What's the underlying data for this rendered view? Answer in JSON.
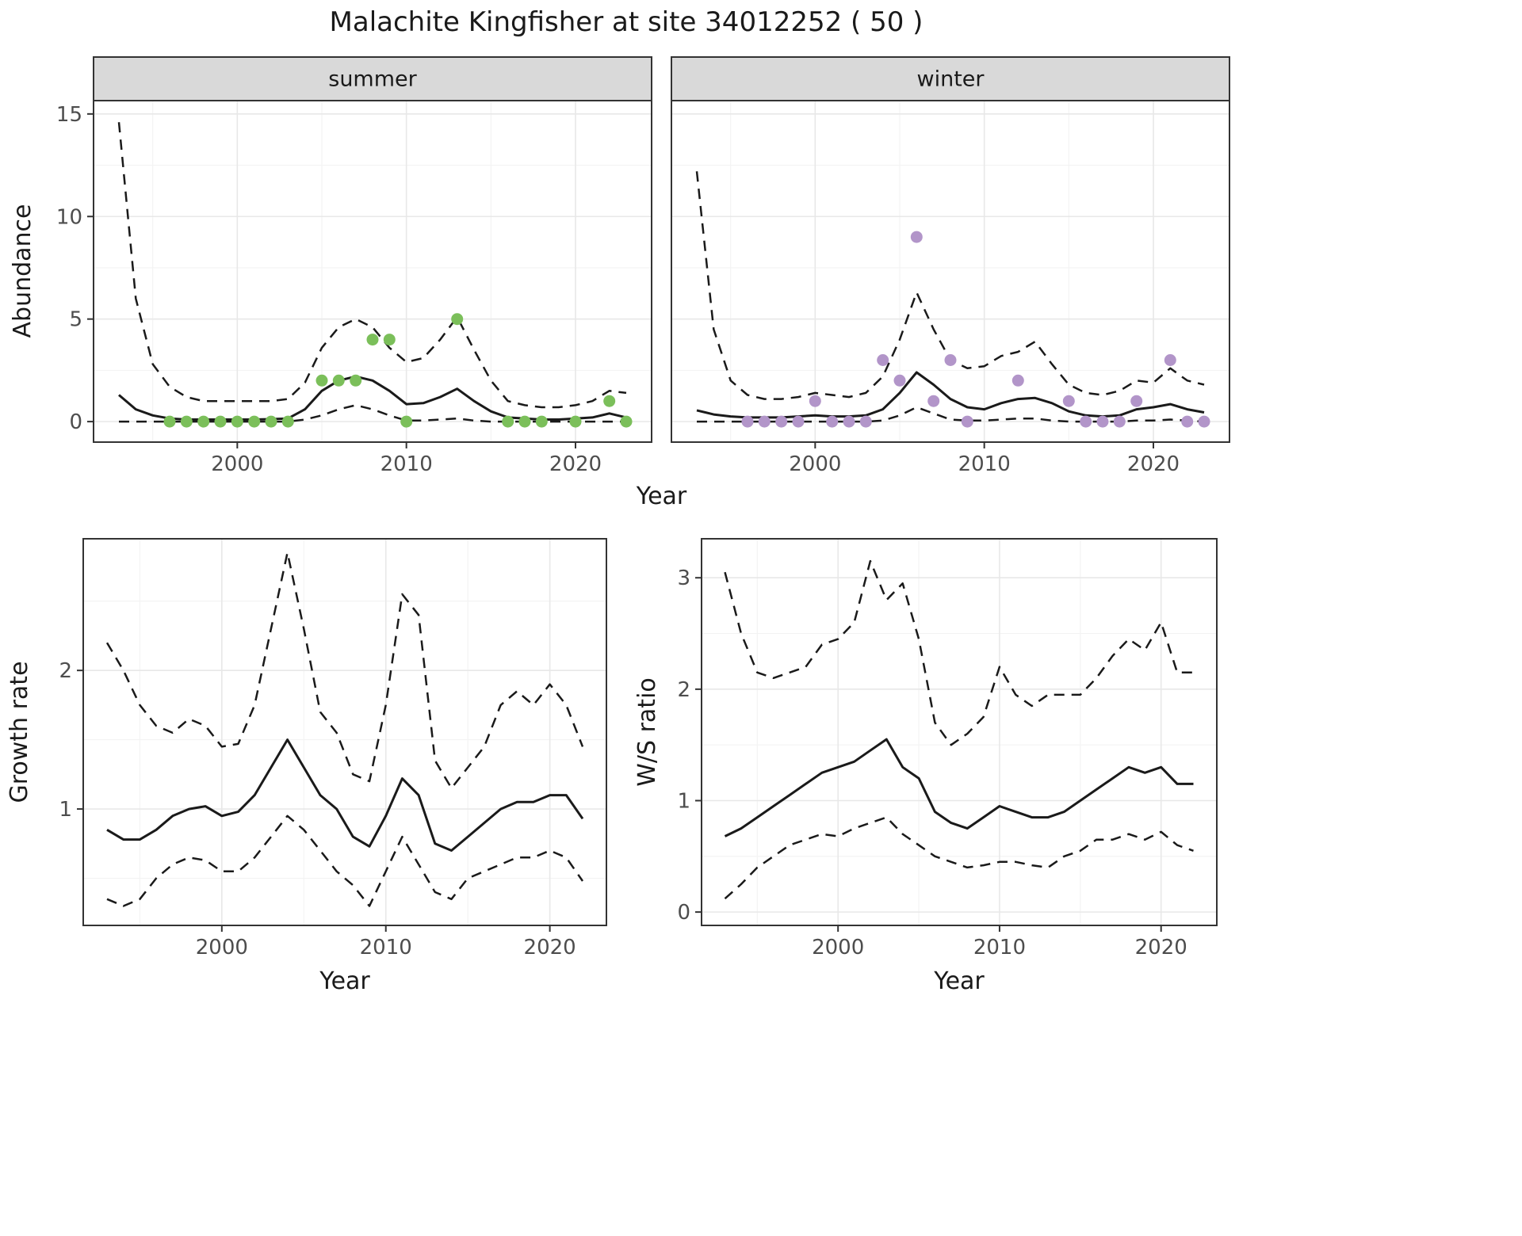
{
  "figure": {
    "title": "Malachite Kingfisher at site 34012252 ( 50 )"
  },
  "colors": {
    "line": "#1a1a1a",
    "panel_border": "#333333",
    "strip_fill": "#d9d9d9",
    "grid_major": "#e8e8e8",
    "grid_minor": "#f3f3f3",
    "summer_point": "#7bbf5a",
    "winter_point": "#b295c9"
  },
  "chart_data": [
    {
      "type": "line",
      "title": "Malachite Kingfisher at site 34012252 ( 50 )",
      "xlabel": "Year",
      "ylabel": "Abundance",
      "facets": [
        "summer",
        "winter"
      ],
      "legend": "none",
      "grid": true,
      "x": [
        1993,
        1994,
        1995,
        1996,
        1997,
        1998,
        1999,
        2000,
        2001,
        2002,
        2003,
        2004,
        2005,
        2006,
        2007,
        2008,
        2009,
        2010,
        2011,
        2012,
        2013,
        2014,
        2015,
        2016,
        2017,
        2018,
        2019,
        2020,
        2021,
        2022,
        2023
      ],
      "xticks": [
        2000,
        2010,
        2020
      ],
      "yticks": [
        0,
        5,
        10,
        15
      ],
      "xlim": [
        1991.5,
        2024.5
      ],
      "ylim": [
        -1.0,
        15.65
      ],
      "series": [
        {
          "facet": "summer",
          "point_color": "#7bbf5a",
          "fit": [
            1.3,
            0.6,
            0.3,
            0.15,
            0.1,
            0.1,
            0.1,
            0.1,
            0.1,
            0.12,
            0.15,
            0.6,
            1.5,
            2.0,
            2.2,
            2.0,
            1.5,
            0.85,
            0.9,
            1.2,
            1.6,
            1.0,
            0.5,
            0.2,
            0.15,
            0.1,
            0.1,
            0.15,
            0.2,
            0.4,
            0.2
          ],
          "ci_upper": [
            14.6,
            6.0,
            2.8,
            1.7,
            1.2,
            1.0,
            1.0,
            1.0,
            1.0,
            1.0,
            1.1,
            1.9,
            3.6,
            4.6,
            5.0,
            4.6,
            3.6,
            2.9,
            3.1,
            4.0,
            5.1,
            3.5,
            2.0,
            1.0,
            0.8,
            0.7,
            0.7,
            0.8,
            1.0,
            1.5,
            1.4
          ],
          "ci_lower": [
            0,
            0,
            0,
            0,
            0,
            0,
            0,
            0,
            0,
            0,
            0,
            0.1,
            0.3,
            0.6,
            0.8,
            0.6,
            0.3,
            0.05,
            0.05,
            0.1,
            0.15,
            0.05,
            0,
            0,
            0,
            0,
            0,
            0,
            0,
            0,
            0
          ],
          "obs_x": [
            1996,
            1997,
            1998,
            1999,
            2000,
            2001,
            2002,
            2003,
            2005,
            2006,
            2007,
            2008,
            2009,
            2010,
            2013,
            2016,
            2017,
            2018,
            2020,
            2022,
            2023
          ],
          "obs_y": [
            0,
            0,
            0,
            0,
            0,
            0,
            0,
            0,
            2,
            2,
            2,
            4,
            4,
            0,
            5,
            0,
            0,
            0,
            0,
            1,
            0
          ]
        },
        {
          "facet": "winter",
          "point_color": "#b295c9",
          "fit": [
            0.55,
            0.35,
            0.25,
            0.2,
            0.2,
            0.2,
            0.25,
            0.3,
            0.25,
            0.25,
            0.3,
            0.6,
            1.4,
            2.4,
            1.8,
            1.1,
            0.7,
            0.6,
            0.9,
            1.1,
            1.15,
            0.9,
            0.5,
            0.3,
            0.25,
            0.3,
            0.6,
            0.7,
            0.85,
            0.6,
            0.45
          ],
          "ci_upper": [
            12.2,
            4.5,
            2.0,
            1.3,
            1.1,
            1.1,
            1.2,
            1.4,
            1.3,
            1.2,
            1.4,
            2.2,
            4.0,
            6.3,
            4.5,
            3.0,
            2.6,
            2.7,
            3.2,
            3.4,
            3.9,
            2.8,
            1.8,
            1.4,
            1.3,
            1.5,
            2.0,
            1.9,
            2.6,
            2.0,
            1.8
          ],
          "ci_lower": [
            0,
            0,
            0,
            0,
            0,
            0,
            0,
            0,
            0,
            0,
            0,
            0.05,
            0.3,
            0.7,
            0.4,
            0.1,
            0.05,
            0.05,
            0.1,
            0.15,
            0.15,
            0.05,
            0,
            0,
            0,
            0,
            0.05,
            0.05,
            0.1,
            0.05,
            0
          ],
          "obs_x": [
            1996,
            1997,
            1998,
            1999,
            2000,
            2001,
            2002,
            2003,
            2004,
            2005,
            2006,
            2007,
            2008,
            2009,
            2012,
            2015,
            2016,
            2017,
            2018,
            2019,
            2021,
            2022,
            2023
          ],
          "obs_y": [
            0,
            0,
            0,
            0,
            1,
            0,
            0,
            0,
            3,
            2,
            9,
            1,
            3,
            0,
            2,
            1,
            0,
            0,
            0,
            1,
            3,
            0,
            0
          ]
        }
      ]
    },
    {
      "type": "line",
      "xlabel": "Year",
      "ylabel": "Growth rate",
      "grid": true,
      "x": [
        1993,
        1994,
        1995,
        1996,
        1997,
        1998,
        1999,
        2000,
        2001,
        2002,
        2003,
        2004,
        2005,
        2006,
        2007,
        2008,
        2009,
        2010,
        2011,
        2012,
        2013,
        2014,
        2015,
        2016,
        2017,
        2018,
        2019,
        2020,
        2021,
        2022
      ],
      "xticks": [
        2000,
        2010,
        2020
      ],
      "yticks": [
        1,
        2
      ],
      "xlim": [
        1991.55,
        2023.45
      ],
      "ylim": [
        0.16,
        2.95
      ],
      "fit": [
        0.85,
        0.78,
        0.78,
        0.85,
        0.95,
        1.0,
        1.02,
        0.95,
        0.98,
        1.1,
        1.3,
        1.5,
        1.3,
        1.1,
        1.0,
        0.8,
        0.73,
        0.95,
        1.22,
        1.1,
        0.75,
        0.7,
        0.8,
        0.9,
        1.0,
        1.05,
        1.05,
        1.1,
        1.1,
        0.93
      ],
      "ci_upper": [
        2.2,
        2.0,
        1.75,
        1.6,
        1.55,
        1.65,
        1.6,
        1.45,
        1.47,
        1.75,
        2.3,
        2.85,
        2.3,
        1.7,
        1.55,
        1.25,
        1.2,
        1.75,
        2.55,
        2.4,
        1.35,
        1.15,
        1.3,
        1.45,
        1.75,
        1.85,
        1.75,
        1.9,
        1.75,
        1.45
      ],
      "ci_lower": [
        0.35,
        0.3,
        0.35,
        0.5,
        0.6,
        0.65,
        0.63,
        0.55,
        0.55,
        0.65,
        0.8,
        0.95,
        0.85,
        0.7,
        0.55,
        0.45,
        0.3,
        0.55,
        0.8,
        0.6,
        0.4,
        0.35,
        0.5,
        0.55,
        0.6,
        0.65,
        0.65,
        0.7,
        0.65,
        0.48
      ]
    },
    {
      "type": "line",
      "xlabel": "Year",
      "ylabel": "W/S ratio",
      "grid": true,
      "x": [
        1993,
        1994,
        1995,
        1996,
        1997,
        1998,
        1999,
        2000,
        2001,
        2002,
        2003,
        2004,
        2005,
        2006,
        2007,
        2008,
        2009,
        2010,
        2011,
        2012,
        2013,
        2014,
        2015,
        2016,
        2017,
        2018,
        2019,
        2020,
        2021,
        2022
      ],
      "xticks": [
        2000,
        2010,
        2020
      ],
      "yticks": [
        0,
        1,
        2,
        3
      ],
      "xlim": [
        1991.55,
        2023.45
      ],
      "ylim": [
        -0.12,
        3.35
      ],
      "fit": [
        0.68,
        0.75,
        0.85,
        0.95,
        1.05,
        1.15,
        1.25,
        1.3,
        1.35,
        1.45,
        1.55,
        1.3,
        1.2,
        0.9,
        0.8,
        0.75,
        0.85,
        0.95,
        0.9,
        0.85,
        0.85,
        0.9,
        1.0,
        1.1,
        1.2,
        1.3,
        1.25,
        1.3,
        1.15,
        1.15
      ],
      "ci_upper": [
        3.05,
        2.5,
        2.15,
        2.1,
        2.15,
        2.2,
        2.4,
        2.45,
        2.6,
        3.15,
        2.8,
        2.95,
        2.45,
        1.7,
        1.5,
        1.6,
        1.75,
        2.2,
        1.95,
        1.85,
        1.95,
        1.95,
        1.95,
        2.1,
        2.3,
        2.45,
        2.35,
        2.6,
        2.15,
        2.15
      ],
      "ci_lower": [
        0.12,
        0.25,
        0.4,
        0.5,
        0.6,
        0.65,
        0.7,
        0.68,
        0.75,
        0.8,
        0.85,
        0.7,
        0.6,
        0.5,
        0.45,
        0.4,
        0.42,
        0.45,
        0.45,
        0.42,
        0.4,
        0.5,
        0.55,
        0.65,
        0.65,
        0.7,
        0.65,
        0.72,
        0.6,
        0.55
      ]
    }
  ]
}
